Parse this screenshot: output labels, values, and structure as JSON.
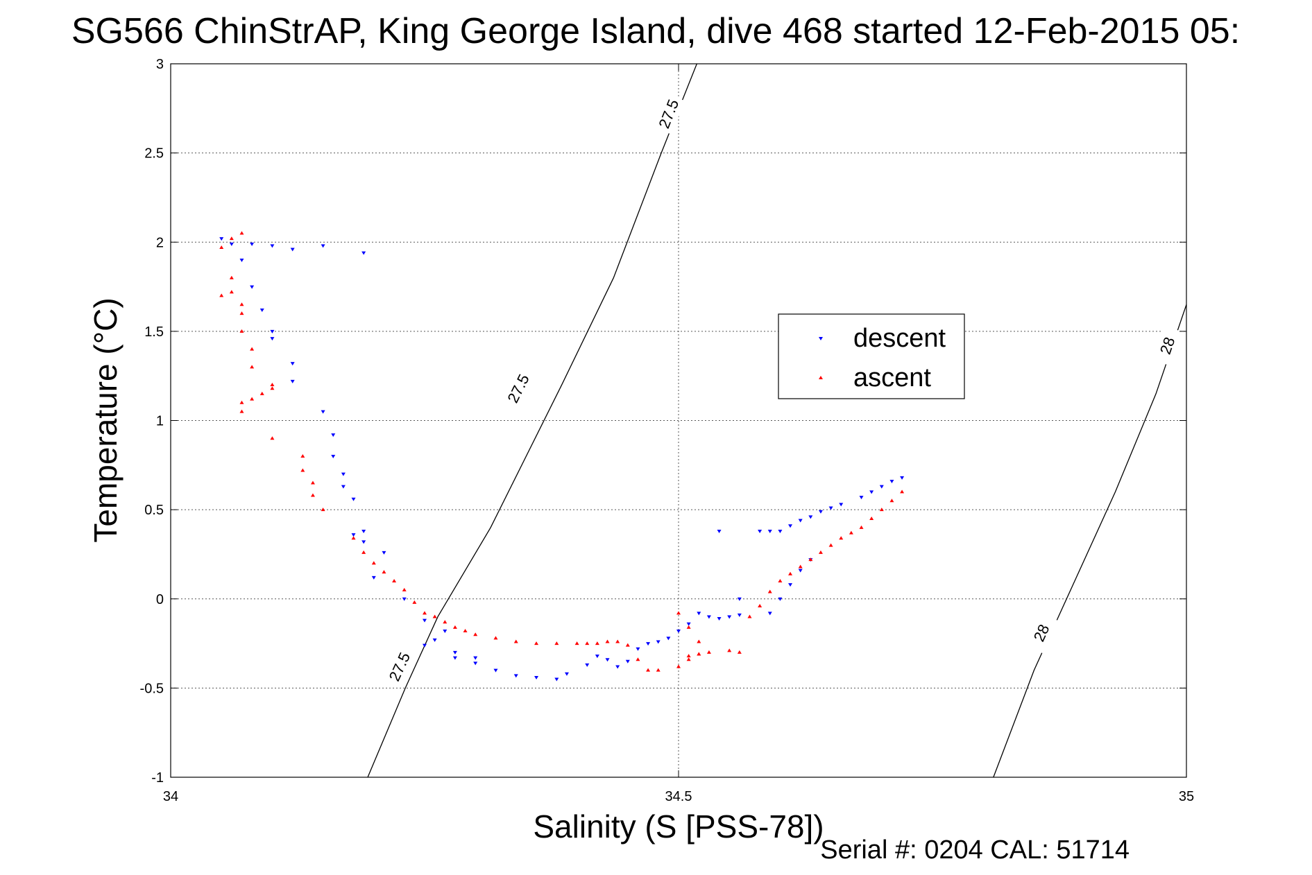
{
  "chart_data": {
    "type": "scatter",
    "title": "SG566 ChinStrAP, King George Island, dive 468 started 12-Feb-2015 05:",
    "xlabel": "Salinity (S [PSS-78])",
    "ylabel": "Temperature (°C)",
    "xlim": [
      34,
      35
    ],
    "ylim": [
      -1,
      3
    ],
    "x_ticks": [
      34,
      34.5,
      35
    ],
    "x_tick_labels": [
      "34",
      "34.5",
      "35"
    ],
    "y_ticks": [
      -1,
      -0.5,
      0,
      0.5,
      1,
      1.5,
      2,
      2.5,
      3
    ],
    "y_tick_labels": [
      "-1",
      "-0.5",
      "0",
      "0.5",
      "1",
      "1.5",
      "2",
      "2.5",
      "3"
    ],
    "grid": true,
    "legend_position": "upper-right",
    "footer": "Serial #: 0204  CAL: 51714",
    "colors": {
      "descent": "#0000ff",
      "ascent": "#ff0000",
      "contour": "#000000"
    },
    "series": [
      {
        "name": "descent",
        "marker": "triangle-down",
        "x": [
          34.05,
          34.06,
          34.08,
          34.1,
          34.12,
          34.15,
          34.19,
          34.07,
          34.08,
          34.09,
          34.1,
          34.1,
          34.12,
          34.12,
          34.15,
          34.16,
          34.16,
          34.17,
          34.17,
          34.18,
          34.19,
          34.18,
          34.19,
          34.21,
          34.2,
          34.23,
          34.25,
          34.27,
          34.26,
          34.25,
          34.28,
          34.28,
          34.3,
          34.3,
          34.32,
          34.34,
          34.36,
          34.38,
          34.39,
          34.41,
          34.42,
          34.43,
          34.44,
          34.45,
          34.46,
          34.47,
          34.48,
          34.49,
          34.5,
          34.51,
          34.52,
          34.53,
          34.54,
          34.55,
          34.56,
          34.56,
          34.54,
          34.58,
          34.59,
          34.6,
          34.61,
          34.62,
          34.63,
          34.64,
          34.65,
          34.66,
          34.68,
          34.69,
          34.7,
          34.71,
          34.72,
          34.59,
          34.6,
          34.61,
          34.62,
          34.63
        ],
        "y": [
          2.02,
          1.99,
          1.99,
          1.98,
          1.96,
          1.98,
          1.94,
          1.9,
          1.75,
          1.62,
          1.5,
          1.46,
          1.32,
          1.22,
          1.05,
          0.92,
          0.8,
          0.7,
          0.63,
          0.56,
          0.32,
          0.36,
          0.38,
          0.26,
          0.12,
          0.0,
          -0.12,
          -0.18,
          -0.23,
          -0.26,
          -0.3,
          -0.33,
          -0.33,
          -0.36,
          -0.4,
          -0.43,
          -0.44,
          -0.45,
          -0.42,
          -0.37,
          -0.32,
          -0.34,
          -0.38,
          -0.35,
          -0.28,
          -0.25,
          -0.24,
          -0.22,
          -0.18,
          -0.14,
          -0.08,
          -0.1,
          -0.11,
          -0.1,
          -0.09,
          0.0,
          0.38,
          0.38,
          0.38,
          0.38,
          0.41,
          0.44,
          0.46,
          0.49,
          0.51,
          0.53,
          0.57,
          0.6,
          0.63,
          0.66,
          0.68,
          -0.08,
          0.0,
          0.08,
          0.16,
          0.22
        ]
      },
      {
        "name": "ascent",
        "marker": "triangle-up",
        "x": [
          34.05,
          34.06,
          34.07,
          34.06,
          34.05,
          34.06,
          34.07,
          34.07,
          34.07,
          34.08,
          34.08,
          34.07,
          34.07,
          34.08,
          34.09,
          34.1,
          34.1,
          34.1,
          34.13,
          34.13,
          34.14,
          34.14,
          34.15,
          34.18,
          34.19,
          34.2,
          34.21,
          34.22,
          34.23,
          34.24,
          34.25,
          34.26,
          34.27,
          34.28,
          34.29,
          34.3,
          34.32,
          34.34,
          34.36,
          34.38,
          34.4,
          34.41,
          34.42,
          34.43,
          34.44,
          34.45,
          34.46,
          34.47,
          34.48,
          34.5,
          34.51,
          34.52,
          34.52,
          34.53,
          34.55,
          34.56,
          34.57,
          34.58,
          34.59,
          34.6,
          34.61,
          34.62,
          34.63,
          34.64,
          34.65,
          34.66,
          34.67,
          34.68,
          34.69,
          34.7,
          34.71,
          34.72,
          34.5,
          34.51,
          34.52,
          34.51
        ],
        "y": [
          1.97,
          2.02,
          2.05,
          1.8,
          1.7,
          1.72,
          1.65,
          1.6,
          1.5,
          1.4,
          1.3,
          1.1,
          1.05,
          1.12,
          1.15,
          1.18,
          1.2,
          0.9,
          0.8,
          0.72,
          0.65,
          0.58,
          0.5,
          0.34,
          0.26,
          0.2,
          0.15,
          0.1,
          0.05,
          -0.02,
          -0.08,
          -0.1,
          -0.13,
          -0.16,
          -0.18,
          -0.2,
          -0.22,
          -0.24,
          -0.25,
          -0.25,
          -0.25,
          -0.25,
          -0.25,
          -0.24,
          -0.24,
          -0.26,
          -0.34,
          -0.4,
          -0.4,
          -0.38,
          -0.34,
          -0.31,
          -0.31,
          -0.3,
          -0.29,
          -0.3,
          -0.1,
          -0.04,
          0.04,
          0.1,
          0.14,
          0.18,
          0.22,
          0.26,
          0.3,
          0.34,
          0.37,
          0.4,
          0.45,
          0.5,
          0.55,
          0.6,
          -0.08,
          -0.16,
          -0.24,
          -0.32
        ]
      }
    ],
    "contours": [
      {
        "label": "27.5",
        "x": [
          34.194,
          34.231,
          34.263,
          34.315,
          34.385,
          34.436,
          34.483,
          34.518
        ],
        "y": [
          -1,
          -0.5,
          -0.1,
          0.4,
          1.2,
          1.8,
          2.5,
          3
        ],
        "label_positions": [
          [
            34.225,
            -0.38
          ],
          [
            34.342,
            1.18
          ],
          [
            34.49,
            2.72
          ]
        ]
      },
      {
        "label": "28",
        "x": [
          34.81,
          34.85,
          34.89,
          34.93,
          34.97,
          35.0
        ],
        "y": [
          -1,
          -0.4,
          0.1,
          0.6,
          1.15,
          1.65
        ],
        "label_positions": [
          [
            34.857,
            -0.19
          ],
          [
            34.981,
            1.42
          ]
        ]
      }
    ]
  }
}
